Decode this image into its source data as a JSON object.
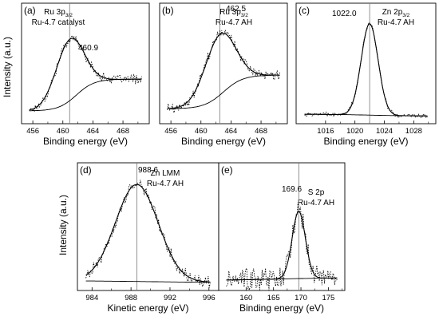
{
  "shared": {
    "ylabel": "Intensity (a.u.)"
  },
  "chart_data": [
    {
      "type": "line",
      "panel_label": "(a)",
      "title_line1": "Ru 3p",
      "title_sub": "3/2",
      "title_line2": "Ru-4.7 catalyst",
      "xlabel": "Binding energy (eV)",
      "ylabel": "Intensity (a.u.)",
      "xlim": [
        454.5,
        471.5
      ],
      "xticks": [
        456,
        460,
        464,
        468
      ],
      "ylim": [
        0,
        1
      ],
      "peak_label": "460.9",
      "peak_x": 460.9,
      "fit_sigma": 1.85,
      "background": {
        "left": 0.1,
        "right": 0.5,
        "center": 461.8,
        "width": 1.2
      },
      "noise": 0.045,
      "colors": {
        "fit": "#000000",
        "data": "#000000",
        "marker": "#777777"
      }
    },
    {
      "type": "line",
      "panel_label": "(b)",
      "title_line1": "Ru 3p",
      "title_sub": "3/2",
      "title_line2": "Ru-4.7 AH",
      "xlabel": "Binding energy (eV)",
      "ylabel": "",
      "xlim": [
        454.5,
        471.5
      ],
      "xticks": [
        456,
        460,
        464,
        468
      ],
      "ylim": [
        0,
        1
      ],
      "peak_label": "462.5",
      "peak_x": 462.5,
      "fit_sigma": 2.0,
      "background": {
        "left": 0.12,
        "right": 0.52,
        "center": 463.0,
        "width": 1.3
      },
      "noise": 0.05,
      "colors": {
        "fit": "#000000",
        "data": "#000000",
        "marker": "#777777"
      }
    },
    {
      "type": "line",
      "panel_label": "(c)",
      "title_line1": "Zn 2p",
      "title_sub": "3/2",
      "title_line2": "Ru-4.7 AH",
      "xlabel": "Binding energy (eV)",
      "ylabel": "",
      "xlim": [
        1012,
        1031
      ],
      "xticks": [
        1016,
        1020,
        1024,
        1028
      ],
      "ylim": [
        0,
        1
      ],
      "peak_label": "1022.0",
      "peak_x": 1022.0,
      "fit_sigma": 1.15,
      "background": {
        "left": 0.05,
        "right": 0.03,
        "center": 1022,
        "width": 3
      },
      "noise": 0.02,
      "colors": {
        "fit": "#000000",
        "data": "#000000",
        "marker": "#777777"
      }
    },
    {
      "type": "line",
      "panel_label": "(d)",
      "title_line1": "Zn LMM",
      "title_sub": "",
      "title_line2": "Ru-4.7 AH",
      "xlabel": "Kinetic energy (eV)",
      "ylabel": "Intensity (a.u.)",
      "xlim": [
        982.5,
        997
      ],
      "xticks": [
        984,
        988,
        992,
        996
      ],
      "ylim": [
        0,
        1
      ],
      "peak_label": "988.6",
      "peak_x": 988.6,
      "fit_sigma": 2.2,
      "background": {
        "left": 0.05,
        "right": 0.03,
        "center": 990,
        "width": 4
      },
      "noise": 0.05,
      "colors": {
        "fit": "#000000",
        "data": "#000000",
        "marker": "#777777"
      }
    },
    {
      "type": "line",
      "panel_label": "(e)",
      "title_line1": "S 2p",
      "title_sub": "",
      "title_line2": "Ru-4.7 AH",
      "xlabel": "Binding energy (eV)",
      "ylabel": "",
      "xlim": [
        155,
        178
      ],
      "xticks": [
        160,
        165,
        170,
        175
      ],
      "ylim": [
        0,
        1
      ],
      "peak_label": "169.6",
      "peak_x": 169.6,
      "fit_sigma": 1.2,
      "background": {
        "left": 0.07,
        "right": 0.11,
        "center": 166,
        "width": 6
      },
      "noise": 0.12,
      "colors": {
        "fit": "#000000",
        "data": "#000000",
        "marker": "#777777"
      }
    }
  ]
}
